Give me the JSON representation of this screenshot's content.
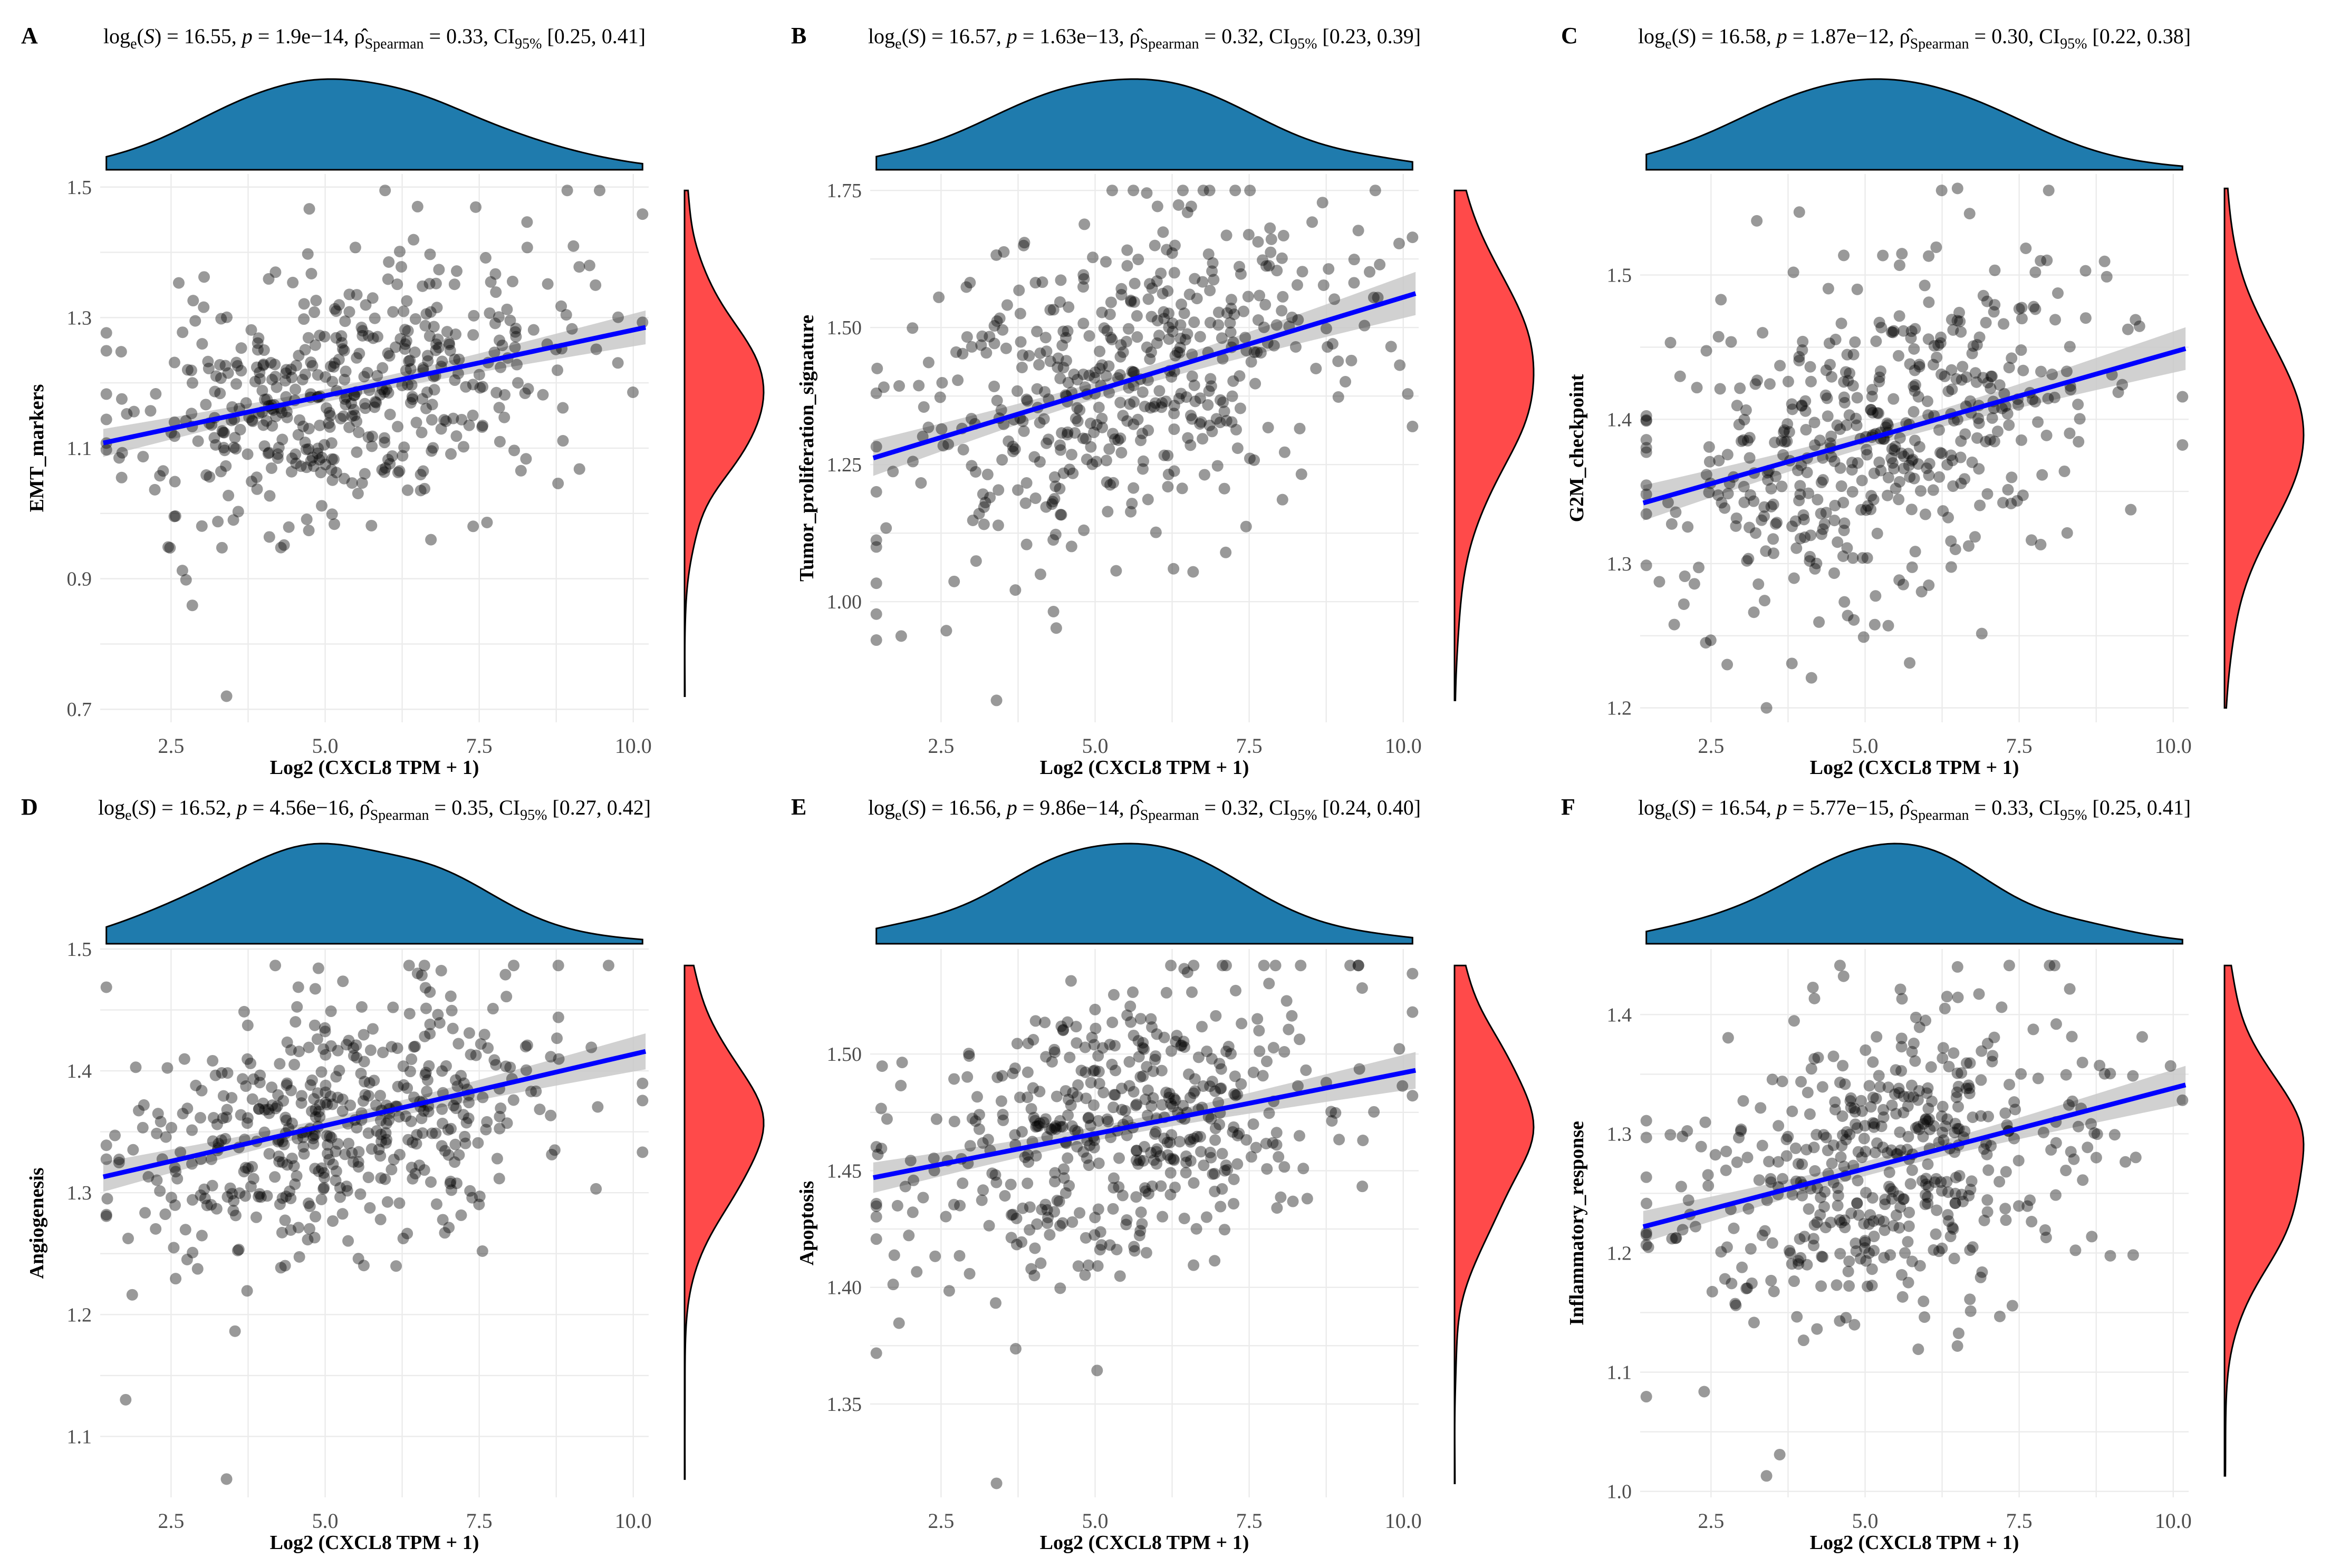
{
  "figure": {
    "colors": {
      "points": "#000000",
      "regression": "#0000ff",
      "ci_band": "#c9c9c9",
      "x_density": "#1f7bad",
      "y_density": "#ff4a4a",
      "grid": "#ebebeb"
    }
  },
  "chart_data": [
    {
      "panel": "A",
      "type": "scatter",
      "subtitle": {
        "logS": "16.55",
        "p": "1.9e−14",
        "rho": "0.33",
        "ci": "[0.25, 0.41]"
      },
      "xlabel": "Log2 (CXCL8 TPM + 1)",
      "ylabel": "EMT_markers",
      "xlim": [
        1.35,
        10.25
      ],
      "ylim": [
        0.68,
        1.52
      ],
      "x_ticks": [
        2.5,
        5.0,
        7.5,
        10.0
      ],
      "x_tick_labels": [
        "2.5",
        "5.0",
        "7.5",
        "10.0"
      ],
      "y_ticks": [
        0.7,
        0.9,
        1.1,
        1.3,
        1.5
      ],
      "y_tick_labels": [
        "0.7",
        "0.9",
        "1.1",
        "1.3",
        "1.5"
      ],
      "regression": {
        "x": [
          1.4,
          10.2
        ],
        "y": [
          1.108,
          1.285
        ]
      },
      "y_mean": 1.17,
      "y_sd": 0.105,
      "y_min_extreme": 0.72,
      "y_max_extreme": 1.47,
      "seed": 11
    },
    {
      "panel": "B",
      "type": "scatter",
      "subtitle": {
        "logS": "16.57",
        "p": "1.63e−13",
        "rho": "0.32",
        "ci": "[0.23, 0.39]"
      },
      "xlabel": "Log2 (CXCL8 TPM + 1)",
      "ylabel": "Tumor_proliferation_signature",
      "xlim": [
        1.35,
        10.25
      ],
      "ylim": [
        0.78,
        1.78
      ],
      "x_ticks": [
        2.5,
        5.0,
        7.5,
        10.0
      ],
      "x_tick_labels": [
        "2.5",
        "5.0",
        "7.5",
        "10.0"
      ],
      "y_ticks": [
        1.0,
        1.25,
        1.5,
        1.75
      ],
      "y_tick_labels": [
        "1.00",
        "1.25",
        "1.50",
        "1.75"
      ],
      "regression": {
        "x": [
          1.4,
          10.2
        ],
        "y": [
          1.262,
          1.562
        ]
      },
      "y_mean": 1.4,
      "y_sd": 0.16,
      "y_min_extreme": 0.82,
      "y_max_extreme": 1.71,
      "seed": 23
    },
    {
      "panel": "C",
      "type": "scatter",
      "subtitle": {
        "logS": "16.58",
        "p": "1.87e−12",
        "rho": "0.30",
        "ci": "[0.22, 0.38]"
      },
      "xlabel": "Log2 (CXCL8 TPM + 1)",
      "ylabel": "G2M_checkpoint",
      "xlim": [
        1.35,
        10.25
      ],
      "ylim": [
        1.19,
        1.57
      ],
      "x_ticks": [
        2.5,
        5.0,
        7.5,
        10.0
      ],
      "x_tick_labels": [
        "2.5",
        "5.0",
        "7.5",
        "10.0"
      ],
      "y_ticks": [
        1.2,
        1.3,
        1.4,
        1.5
      ],
      "y_tick_labels": [
        "1.2",
        "1.3",
        "1.4",
        "1.5"
      ],
      "regression": {
        "x": [
          1.4,
          10.2
        ],
        "y": [
          1.342,
          1.449
        ]
      },
      "y_mean": 1.39,
      "y_sd": 0.06,
      "y_min_extreme": 1.2,
      "y_max_extreme": 1.56,
      "seed": 37
    },
    {
      "panel": "D",
      "type": "scatter",
      "subtitle": {
        "logS": "16.52",
        "p": "4.56e−16",
        "rho": "0.35",
        "ci": "[0.27, 0.42]"
      },
      "xlabel": "Log2 (CXCL8 TPM + 1)",
      "ylabel": "Angiogenesis",
      "xlim": [
        1.35,
        10.25
      ],
      "ylim": [
        1.05,
        1.5
      ],
      "x_ticks": [
        2.5,
        5.0,
        7.5,
        10.0
      ],
      "x_tick_labels": [
        "2.5",
        "5.0",
        "7.5",
        "10.0"
      ],
      "y_ticks": [
        1.1,
        1.2,
        1.3,
        1.4,
        1.5
      ],
      "y_tick_labels": [
        "1.1",
        "1.2",
        "1.3",
        "1.4",
        "1.5"
      ],
      "regression": {
        "x": [
          1.4,
          10.2
        ],
        "y": [
          1.313,
          1.416
        ]
      },
      "y_mean": 1.36,
      "y_sd": 0.06,
      "y_min_extreme": 1.065,
      "y_max_extreme": 1.48,
      "seed": 41
    },
    {
      "panel": "E",
      "type": "scatter",
      "subtitle": {
        "logS": "16.56",
        "p": "9.86e−14",
        "rho": "0.32",
        "ci": "[0.24, 0.40]"
      },
      "xlabel": "Log2 (CXCL8 TPM + 1)",
      "ylabel": "Apoptosis",
      "xlim": [
        1.35,
        10.25
      ],
      "ylim": [
        1.31,
        1.545
      ],
      "x_ticks": [
        2.5,
        5.0,
        7.5,
        10.0
      ],
      "x_tick_labels": [
        "2.5",
        "5.0",
        "7.5",
        "10.0"
      ],
      "y_ticks": [
        1.35,
        1.4,
        1.45,
        1.5
      ],
      "y_tick_labels": [
        "1.35",
        "1.40",
        "1.45",
        "1.50"
      ],
      "regression": {
        "x": [
          1.4,
          10.2
        ],
        "y": [
          1.447,
          1.493
        ]
      },
      "y_mean": 1.465,
      "y_sd": 0.032,
      "y_min_extreme": 1.316,
      "y_max_extreme": 1.535,
      "seed": 53
    },
    {
      "panel": "F",
      "type": "scatter",
      "subtitle": {
        "logS": "16.54",
        "p": "5.77e−15",
        "rho": "0.33",
        "ci": "[0.25, 0.41]"
      },
      "xlabel": "Log2 (CXCL8 TPM + 1)",
      "ylabel": "Inflammatory_response",
      "xlim": [
        1.35,
        10.25
      ],
      "ylim": [
        0.995,
        1.455
      ],
      "x_ticks": [
        2.5,
        5.0,
        7.5,
        10.0
      ],
      "x_tick_labels": [
        "2.5",
        "5.0",
        "7.5",
        "10.0"
      ],
      "y_ticks": [
        1.0,
        1.1,
        1.2,
        1.3,
        1.4
      ],
      "y_tick_labels": [
        "1.0",
        "1.1",
        "1.2",
        "1.3",
        "1.4"
      ],
      "regression": {
        "x": [
          1.4,
          10.2
        ],
        "y": [
          1.222,
          1.341
        ]
      },
      "y_mean": 1.275,
      "y_sd": 0.065,
      "y_min_extreme": 1.013,
      "y_max_extreme": 1.44,
      "seed": 67
    }
  ]
}
